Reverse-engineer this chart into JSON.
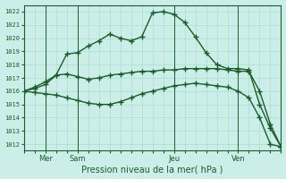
{
  "title": "Pression niveau de la mer( hPa )",
  "bg_color": "#cceee8",
  "line_color": "#1a5c2a",
  "grid_major_color": "#aaddcc",
  "grid_minor_color": "#bbddd8",
  "ylim": [
    1011.5,
    1022.5
  ],
  "yticks": [
    1012,
    1013,
    1014,
    1015,
    1016,
    1017,
    1018,
    1019,
    1020,
    1021,
    1022
  ],
  "xlabel": "Pression niveau de la mer( hPa )",
  "xtick_labels": [
    "Mer",
    "Sam",
    "Jeu",
    "Ven"
  ],
  "num_points": 25,
  "series1_x": [
    0,
    1,
    2,
    3,
    4,
    5,
    6,
    7,
    8,
    9,
    10,
    11,
    12,
    13,
    14,
    15,
    16,
    17,
    18,
    19,
    20,
    21,
    22,
    23,
    24
  ],
  "series1_y": [
    1016.0,
    1016.3,
    1016.7,
    1017.2,
    1018.8,
    1018.9,
    1019.4,
    1019.8,
    1020.3,
    1020.0,
    1019.8,
    1020.1,
    1021.9,
    1022.0,
    1021.8,
    1021.2,
    1020.1,
    1018.9,
    1018.0,
    1017.7,
    1017.7,
    1017.6,
    1015.0,
    1013.2,
    1011.8
  ],
  "series2_x": [
    0,
    1,
    2,
    3,
    4,
    5,
    6,
    7,
    8,
    9,
    10,
    11,
    12,
    13,
    14,
    15,
    16,
    17,
    18,
    19,
    20,
    21,
    22,
    23,
    24
  ],
  "series2_y": [
    1016.0,
    1016.2,
    1016.5,
    1017.2,
    1017.3,
    1017.1,
    1016.9,
    1017.0,
    1017.2,
    1017.3,
    1017.4,
    1017.5,
    1017.5,
    1017.6,
    1017.6,
    1017.7,
    1017.7,
    1017.7,
    1017.7,
    1017.6,
    1017.5,
    1017.5,
    1016.0,
    1013.5,
    1011.8
  ],
  "series3_x": [
    0,
    1,
    2,
    3,
    4,
    5,
    6,
    7,
    8,
    9,
    10,
    11,
    12,
    13,
    14,
    15,
    16,
    17,
    18,
    19,
    20,
    21,
    22,
    23,
    24
  ],
  "series3_y": [
    1016.0,
    1015.9,
    1015.8,
    1015.7,
    1015.5,
    1015.3,
    1015.1,
    1015.0,
    1015.0,
    1015.2,
    1015.5,
    1015.8,
    1016.0,
    1016.2,
    1016.4,
    1016.5,
    1016.6,
    1016.5,
    1016.4,
    1016.3,
    1016.0,
    1015.5,
    1014.0,
    1012.0,
    1011.8
  ],
  "vline_x": [
    2,
    5,
    14,
    20
  ],
  "xtick_x": [
    2,
    5,
    14,
    20
  ]
}
